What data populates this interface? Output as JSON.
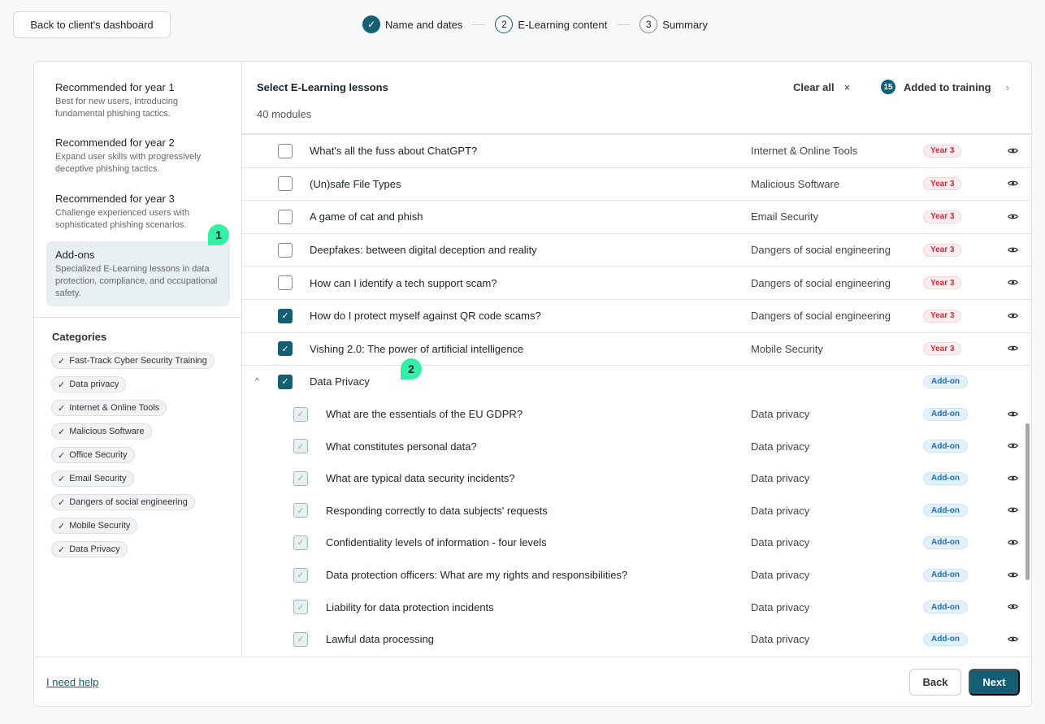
{
  "top": {
    "back_label": "Back to client's dashboard"
  },
  "stepper": [
    {
      "num": "✓",
      "label": "Name and dates",
      "state": "done"
    },
    {
      "num": "2",
      "label": "E-Learning content",
      "state": "current"
    },
    {
      "num": "3",
      "label": "Summary",
      "state": "todo"
    }
  ],
  "sidebar": {
    "recommendations": [
      {
        "title": "Recommended for year 1",
        "desc": "Best for new users, introducing fundamental phishing tactics."
      },
      {
        "title": "Recommended for year 2",
        "desc": "Expand user skills with progressively deceptive phishing tactics."
      },
      {
        "title": "Recommended for year 3",
        "desc": "Challenge experienced users with sophisticated phishing scenarios."
      }
    ],
    "addons": {
      "title": "Add-ons",
      "desc": "Specialized E-Learning lessons in data protection, compliance, and occupational safety.",
      "marker": "1"
    },
    "categories_title": "Categories",
    "categories": [
      "Fast-Track Cyber Security Training",
      "Data privacy",
      "Internet & Online Tools",
      "Malicious Software",
      "Office Security",
      "Email Security",
      "Dangers of social engineering",
      "Mobile Security",
      "Data Privacy"
    ]
  },
  "main": {
    "title": "Select E-Learning lessons",
    "count": "40 modules",
    "clear_all": "Clear all",
    "clear_icon": "×",
    "added_count": "15",
    "added_label": "Added to training",
    "marker": "2",
    "rows": [
      {
        "title": "What's all the fuss about ChatGPT?",
        "category": "Internet & Online Tools",
        "badge": "Year 3",
        "checked": false
      },
      {
        "title": "(Un)safe File Types",
        "category": "Malicious Software",
        "badge": "Year 3",
        "checked": false
      },
      {
        "title": "A game of cat and phish",
        "category": "Email Security",
        "badge": "Year 3",
        "checked": false
      },
      {
        "title": "Deepfakes: between digital deception and reality",
        "category": "Dangers of social engineering",
        "badge": "Year 3",
        "checked": false
      },
      {
        "title": "How can I identify a tech support scam?",
        "category": "Dangers of social engineering",
        "badge": "Year 3",
        "checked": false
      },
      {
        "title": "How do I protect myself against QR code scams?",
        "category": "Dangers of social engineering",
        "badge": "Year 3",
        "checked": true
      },
      {
        "title": "Vishing 2.0: The power of artificial intelligence",
        "category": "Mobile Security",
        "badge": "Year 3",
        "checked": true
      }
    ],
    "group": {
      "title": "Data Privacy",
      "badge": "Add-on",
      "checked": true,
      "expanded": true,
      "children": [
        {
          "title": "What are the essentials of the EU GDPR?",
          "category": "Data privacy",
          "badge": "Add-on"
        },
        {
          "title": "What constitutes personal data?",
          "category": "Data privacy",
          "badge": "Add-on"
        },
        {
          "title": "What are typical data security incidents?",
          "category": "Data privacy",
          "badge": "Add-on"
        },
        {
          "title": "Responding correctly to data subjects' requests",
          "category": "Data privacy",
          "badge": "Add-on"
        },
        {
          "title": "Confidentiality levels of information - four levels",
          "category": "Data privacy",
          "badge": "Add-on"
        },
        {
          "title": "Data protection officers: What are my rights and responsibilities?",
          "category": "Data privacy",
          "badge": "Add-on"
        },
        {
          "title": "Liability for data protection incidents",
          "category": "Data privacy",
          "badge": "Add-on"
        },
        {
          "title": "Lawful data processing",
          "category": "Data privacy",
          "badge": "Add-on"
        }
      ]
    }
  },
  "footer": {
    "help": "I need help",
    "back": "Back",
    "next": "Next"
  },
  "colors": {
    "accent": "#135f73",
    "marker": "#33f0a5",
    "year_badge": "#d12a3a",
    "addon_badge": "#1c6fc4"
  }
}
